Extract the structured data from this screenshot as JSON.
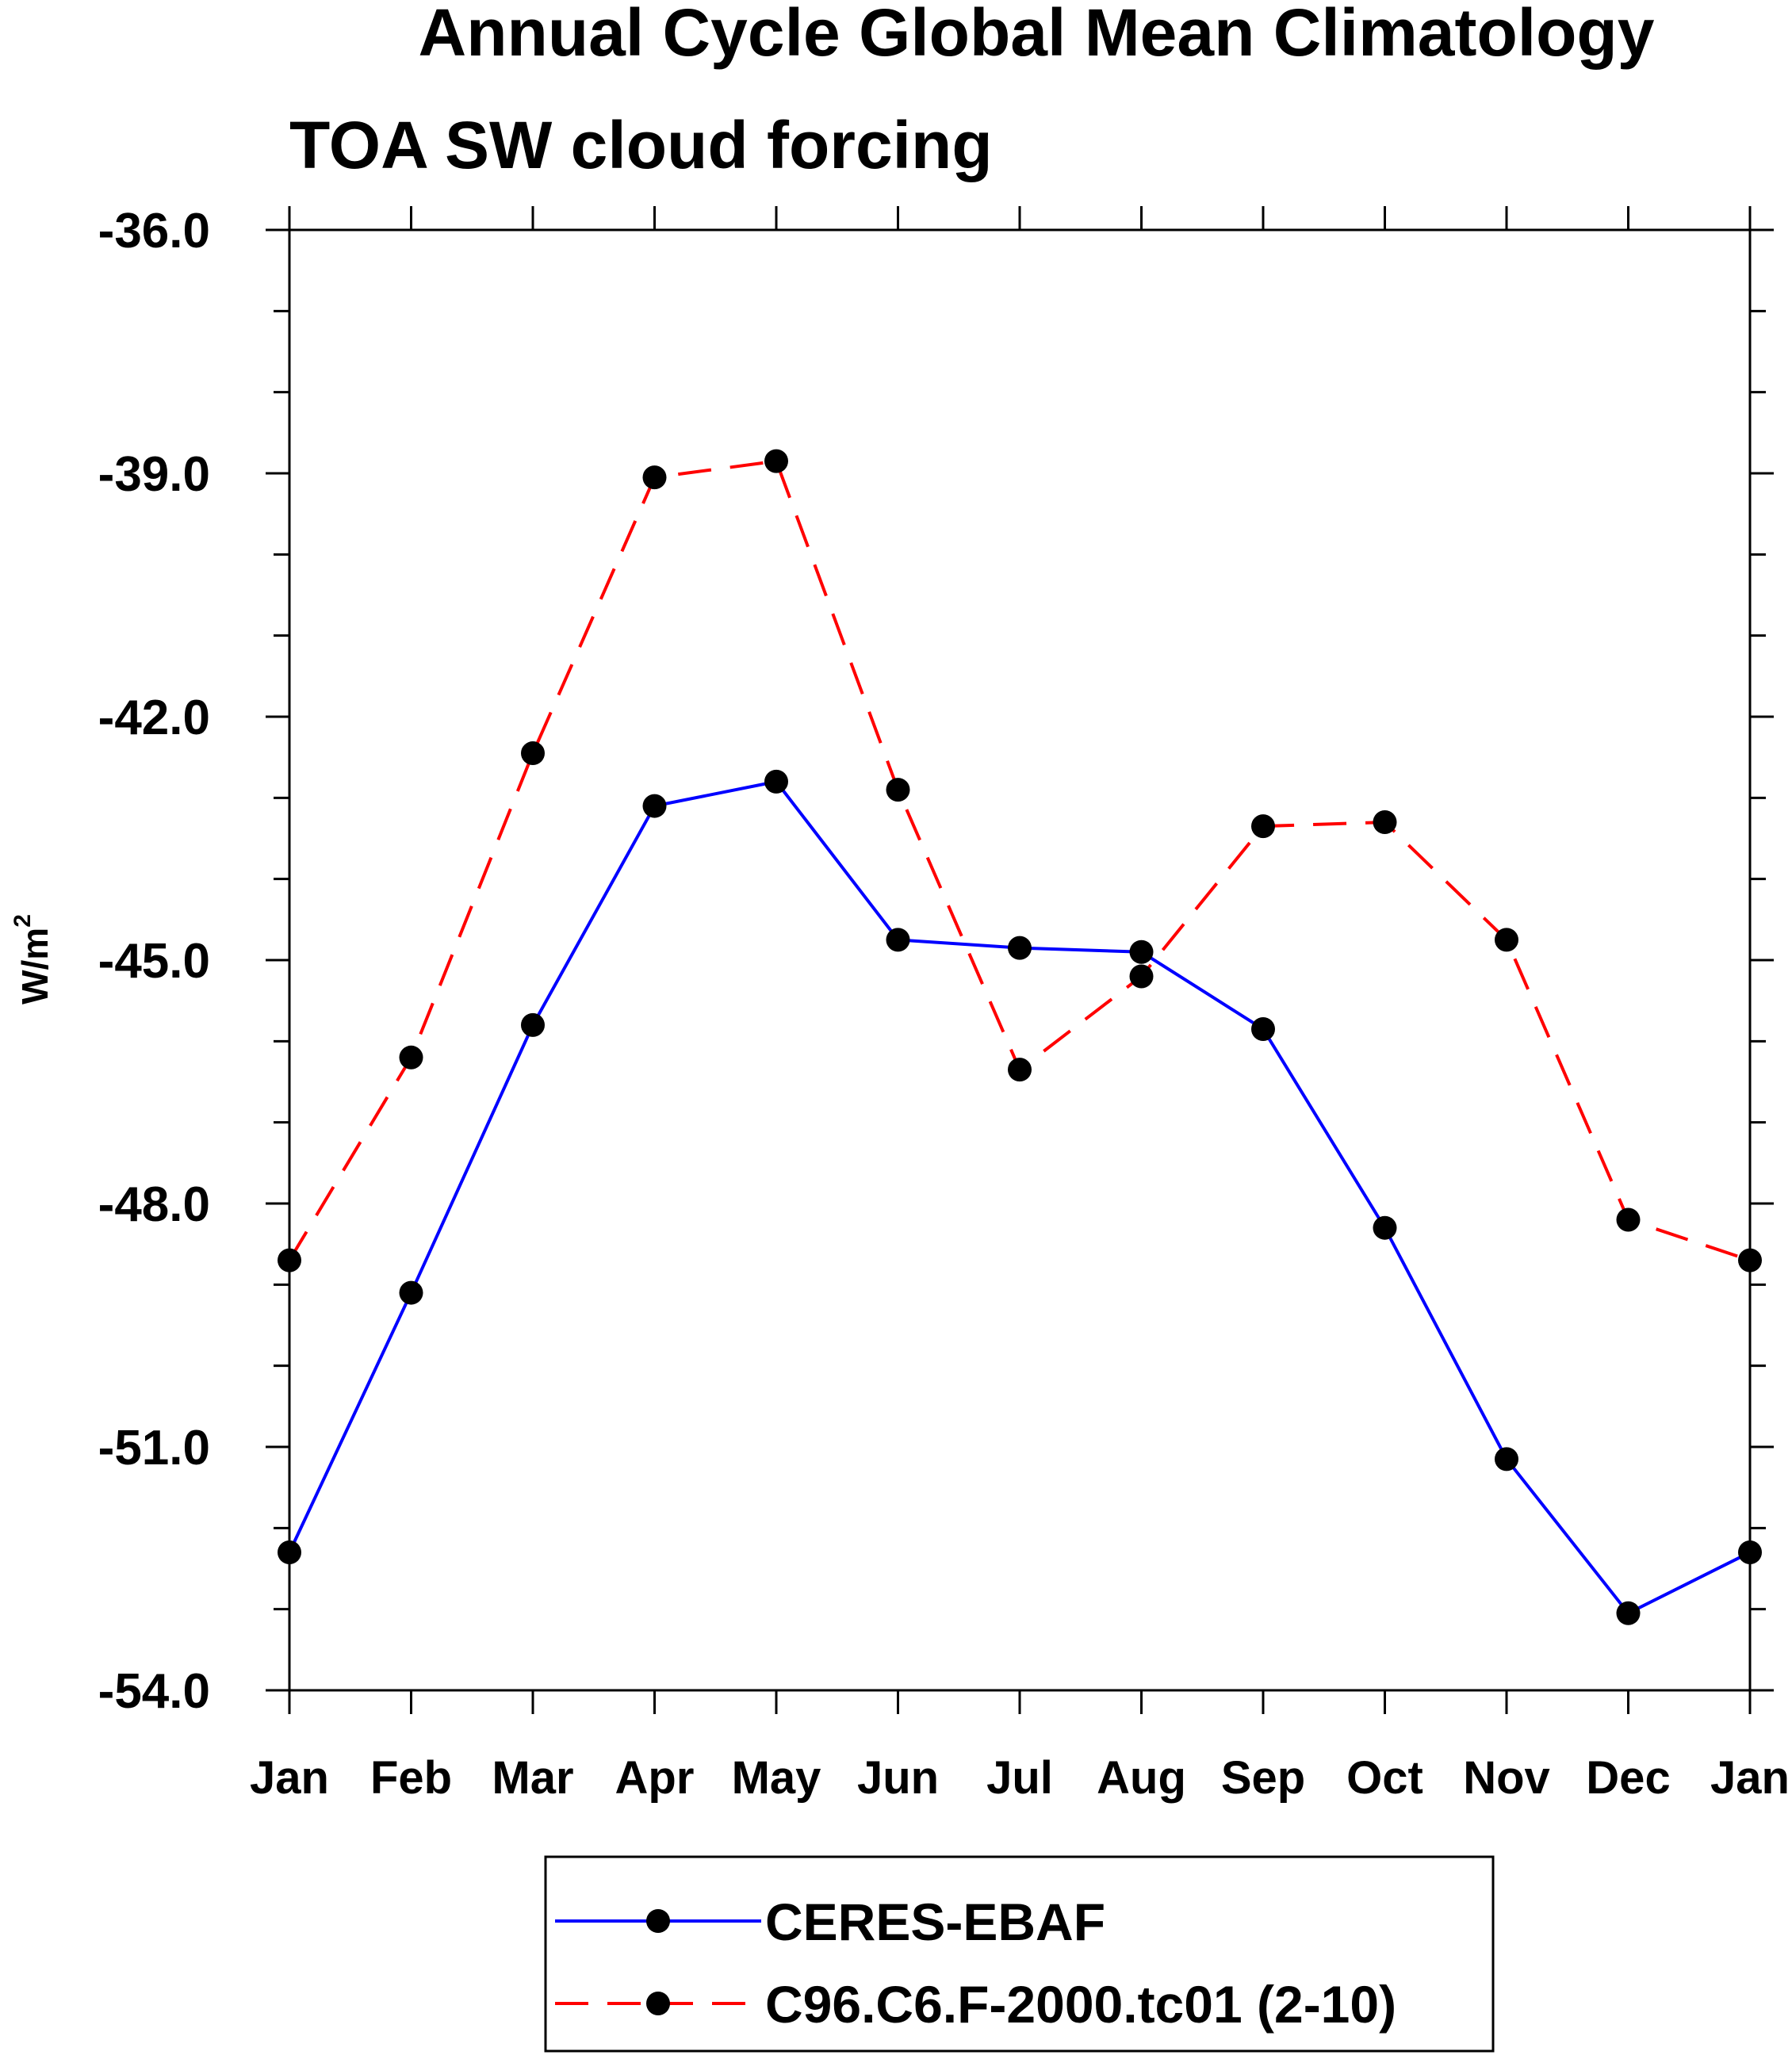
{
  "chart_data": {
    "type": "line",
    "title": "Annual Cycle Global Mean Climatology",
    "subtitle": "TOA SW cloud forcing",
    "ylabel": "W/m",
    "ylabel_superscript": "2",
    "xlabel": "",
    "categories": [
      "Jan",
      "Feb",
      "Mar",
      "Apr",
      "May",
      "Jun",
      "Jul",
      "Aug",
      "Sep",
      "Oct",
      "Nov",
      "Dec",
      "Jan"
    ],
    "ylim": [
      -54.0,
      -36.0
    ],
    "yticks": [
      -36.0,
      -39.0,
      -42.0,
      -45.0,
      -48.0,
      -51.0,
      -54.0
    ],
    "ytick_labels": [
      "-36.0",
      "-39.0",
      "-42.0",
      "-45.0",
      "-48.0",
      "-51.0",
      "-54.0"
    ],
    "series": [
      {
        "name": "CERES-EBAF",
        "color": "#0000ff",
        "dashed": false,
        "values": [
          -52.3,
          -49.1,
          -45.8,
          -43.1,
          -42.8,
          -44.75,
          -44.85,
          -44.9,
          -45.85,
          -48.3,
          -51.15,
          -53.05,
          -52.3
        ]
      },
      {
        "name": "C96.C6.F-2000.tc01 (2-10)",
        "color": "#ff0000",
        "dashed": true,
        "values": [
          -48.7,
          -46.2,
          -42.45,
          -39.05,
          -38.85,
          -42.9,
          -46.35,
          -45.2,
          -43.35,
          -43.3,
          -44.75,
          -48.2,
          -48.7
        ]
      }
    ],
    "marker_color": "#000000",
    "legend_position": "bottom-center"
  }
}
